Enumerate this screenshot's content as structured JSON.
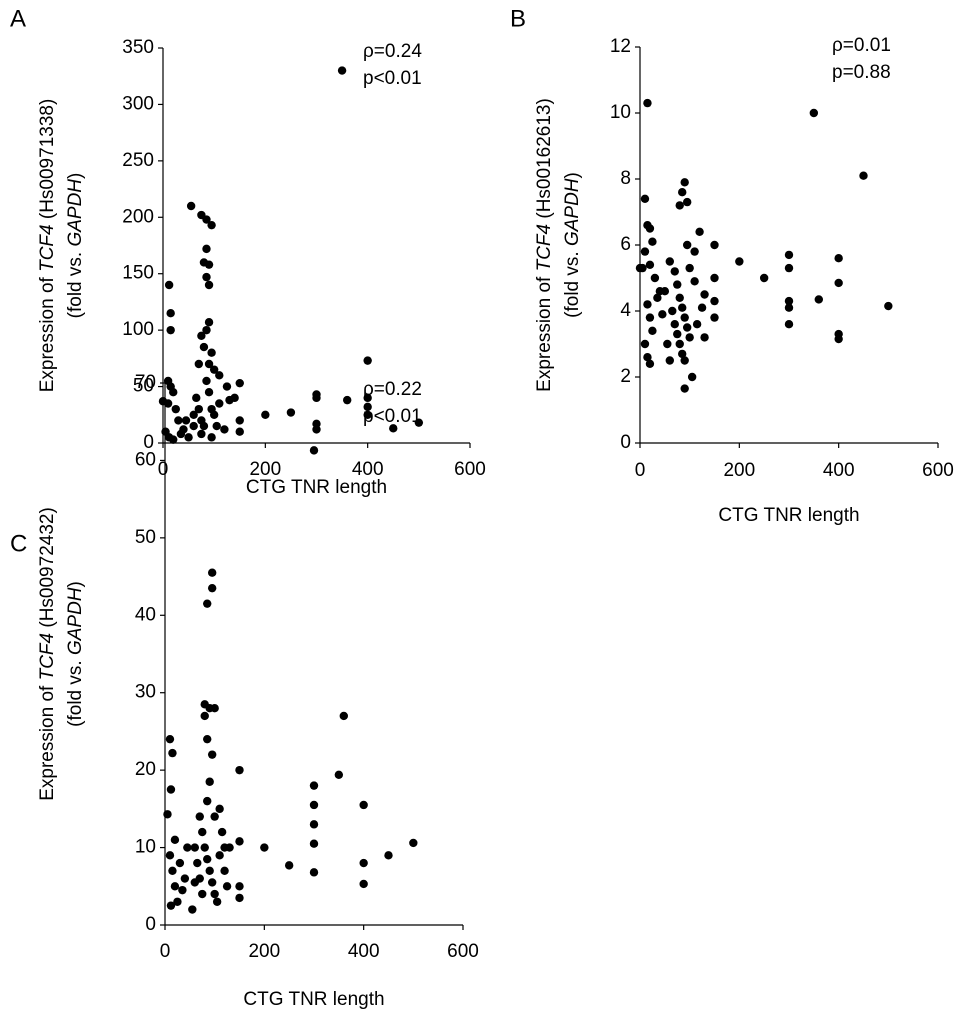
{
  "chart_data": [
    {
      "type": "scatter",
      "panel": "A",
      "ylabel": [
        [
          "Expression of ",
          "TCF4",
          " (Hs00971338)"
        ],
        [
          "(fold vs. ",
          "GAPDH",
          ")"
        ]
      ],
      "xlabel": "CTG TNR length",
      "annotations": [
        "ρ=0.24",
        "p<0.01"
      ],
      "color": "#000000",
      "xlim": [
        0,
        600
      ],
      "xticks": [
        0,
        200,
        400,
        600
      ],
      "ylim": [
        0,
        350
      ],
      "yticks": [
        0,
        50,
        100,
        150,
        200,
        250,
        300,
        350
      ],
      "x": [
        350,
        55,
        75,
        85,
        95,
        85,
        80,
        90,
        85,
        90,
        12,
        15,
        15,
        90,
        85,
        75,
        80,
        95,
        70,
        90,
        100,
        110,
        125,
        150,
        10,
        15,
        20,
        25,
        30,
        10,
        5,
        12,
        20,
        35,
        50,
        65,
        70,
        75,
        80,
        90,
        95,
        100,
        105,
        110,
        130,
        150,
        150,
        200,
        250,
        300,
        300,
        300,
        300,
        360,
        400,
        400,
        400,
        400,
        450,
        500,
        0,
        40,
        60,
        85,
        120,
        140,
        75,
        95,
        60,
        45
      ],
      "values": [
        330,
        210,
        202,
        198,
        193,
        172,
        160,
        158,
        147,
        140,
        140,
        115,
        100,
        107,
        100,
        95,
        85,
        80,
        70,
        70,
        65,
        60,
        50,
        53,
        55,
        50,
        45,
        30,
        20,
        35,
        10,
        5,
        3,
        8,
        5,
        40,
        30,
        20,
        15,
        45,
        30,
        25,
        15,
        35,
        38,
        20,
        10,
        25,
        27,
        43,
        40,
        17,
        12,
        38,
        73,
        40,
        32,
        25,
        13,
        18,
        37,
        12,
        25,
        55,
        12,
        40,
        8,
        5,
        15,
        20
      ]
    },
    {
      "type": "scatter",
      "panel": "B",
      "ylabel": [
        [
          "Expression of ",
          "TCF4",
          " (Hs00162613)"
        ],
        [
          "(fold vs. ",
          "GAPDH",
          ")"
        ]
      ],
      "xlabel": "CTG TNR length",
      "annotations": [
        "ρ=0.01",
        "p=0.88"
      ],
      "color": "#000000",
      "xlim": [
        0,
        600
      ],
      "xticks": [
        0,
        200,
        400,
        600
      ],
      "ylim": [
        0,
        12
      ],
      "yticks": [
        0,
        2,
        4,
        6,
        8,
        10,
        12
      ],
      "x": [
        15,
        350,
        450,
        90,
        85,
        95,
        80,
        10,
        15,
        20,
        25,
        5,
        10,
        20,
        30,
        35,
        15,
        20,
        25,
        10,
        15,
        20,
        60,
        70,
        75,
        80,
        85,
        90,
        95,
        100,
        80,
        85,
        90,
        105,
        90,
        65,
        70,
        75,
        110,
        120,
        110,
        125,
        130,
        150,
        150,
        150,
        150,
        200,
        250,
        300,
        300,
        300,
        300,
        300,
        360,
        400,
        400,
        400,
        400,
        500,
        50,
        45,
        55,
        95,
        100,
        0,
        40,
        130,
        115,
        60
      ],
      "values": [
        10.3,
        10,
        8.1,
        7.9,
        7.6,
        7.3,
        7.2,
        7.4,
        6.6,
        6.5,
        6.1,
        5.3,
        5.8,
        5.4,
        5.0,
        4.4,
        4.2,
        3.8,
        3.4,
        3.0,
        2.6,
        2.4,
        5.5,
        5.2,
        4.8,
        4.4,
        4.1,
        3.8,
        3.5,
        3.2,
        3.0,
        2.7,
        2.5,
        2.0,
        1.65,
        4.0,
        3.6,
        3.3,
        5.8,
        6.4,
        4.9,
        4.1,
        3.2,
        6.0,
        5.0,
        4.3,
        3.8,
        5.5,
        5.0,
        5.7,
        5.3,
        4.3,
        4.1,
        3.6,
        4.35,
        5.6,
        4.85,
        3.3,
        3.15,
        4.15,
        4.6,
        3.9,
        3.0,
        6.0,
        5.3,
        5.3,
        4.6,
        4.5,
        3.6,
        2.5
      ]
    },
    {
      "type": "scatter",
      "panel": "C",
      "ylabel": [
        [
          "Expression of ",
          "TCF4",
          " (Hs00972432)"
        ],
        [
          "(fold vs. ",
          "GAPDH",
          ")"
        ]
      ],
      "xlabel": "CTG TNR length",
      "annotations": [
        "ρ=0.22",
        "p<0.01"
      ],
      "color": "#000000",
      "xlim": [
        0,
        600
      ],
      "xticks": [
        0,
        200,
        400,
        600
      ],
      "ylim": [
        0,
        70
      ],
      "yticks": [
        0,
        10,
        20,
        30,
        40,
        50,
        60,
        70
      ],
      "x": [
        300,
        95,
        95,
        85,
        80,
        90,
        100,
        80,
        85,
        95,
        90,
        360,
        350,
        300,
        300,
        300,
        300,
        300,
        400,
        400,
        400,
        450,
        500,
        250,
        200,
        150,
        150,
        150,
        150,
        10,
        15,
        12,
        20,
        5,
        10,
        15,
        20,
        25,
        12,
        30,
        40,
        55,
        60,
        70,
        75,
        80,
        85,
        90,
        95,
        100,
        105,
        110,
        115,
        120,
        125,
        130,
        60,
        65,
        70,
        75,
        85,
        100,
        110,
        35,
        45,
        120
      ],
      "values": [
        61.3,
        45.5,
        43.5,
        41.5,
        28.5,
        28,
        28,
        27,
        24,
        22,
        18.5,
        27,
        19.4,
        18,
        15.5,
        13,
        10.5,
        6.8,
        15.5,
        8,
        5.3,
        9,
        10.6,
        7.7,
        10,
        20,
        10.8,
        5,
        3.5,
        24,
        22.2,
        17.5,
        11,
        14.3,
        9,
        7,
        5,
        3,
        2.5,
        8,
        6,
        2,
        5.5,
        14,
        12,
        10,
        8.5,
        7,
        5.5,
        4,
        3,
        9,
        12,
        7,
        5,
        10,
        10,
        8,
        6,
        4,
        16,
        14,
        15,
        4.5,
        10,
        10
      ]
    }
  ]
}
